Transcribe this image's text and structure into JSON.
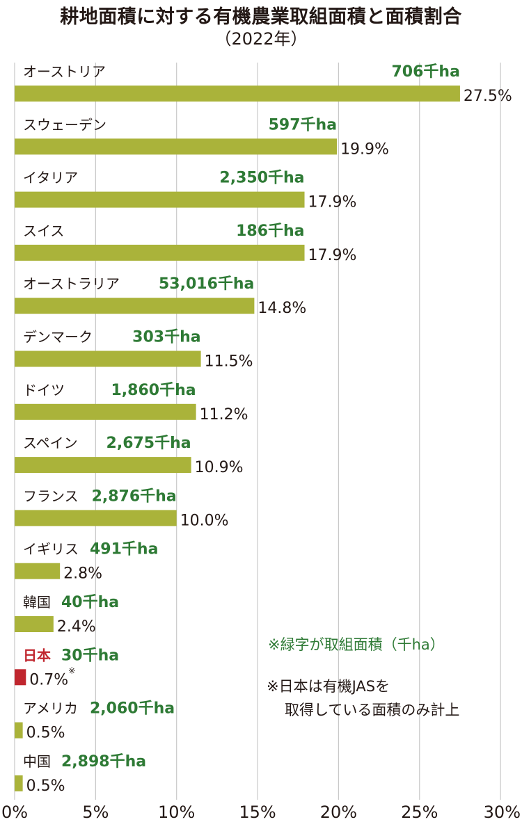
{
  "title": "耕地面積に対する有機農業取組面積と面積割合",
  "subtitle": "（2022年）",
  "notes": {
    "green": "※緑字が取組面積（千ha）",
    "black_line1": "※日本は有機JASを",
    "black_line2": "取得している面積のみ計上"
  },
  "colors": {
    "bar": "#aab33a",
    "highlight_bar": "#c0262e",
    "area_text": "#2e7a35",
    "highlight_text": "#c0262e",
    "grid": "#c8c8c8"
  },
  "chart_data": {
    "type": "bar",
    "orientation": "horizontal",
    "title": "耕地面積に対する有機農業取組面積と面積割合",
    "subtitle": "（2022年）",
    "xlim": [
      0,
      30
    ],
    "xticks": [
      "0%",
      "5%",
      "10%",
      "15%",
      "20%",
      "25%",
      "30%"
    ],
    "grid": true,
    "categories": [
      "オーストリア",
      "スウェーデン",
      "イタリア",
      "スイス",
      "オーストラリア",
      "デンマーク",
      "ドイツ",
      "スペイン",
      "フランス",
      "イギリス",
      "韓国",
      "日本",
      "アメリカ",
      "中国"
    ],
    "values": [
      27.5,
      19.9,
      17.9,
      17.9,
      14.8,
      11.5,
      11.2,
      10.9,
      10.0,
      2.8,
      2.4,
      0.7,
      0.5,
      0.5
    ],
    "value_labels": [
      "27.5%",
      "19.9%",
      "17.9%",
      "17.9%",
      "14.8%",
      "11.5%",
      "11.2%",
      "10.9%",
      "10.0%",
      "2.8%",
      "2.4%",
      "0.7%",
      "0.5%",
      "0.5%"
    ],
    "area_labels": [
      "706千ha",
      "597千ha",
      "2,350千ha",
      "186千ha",
      "53,016千ha",
      "303千ha",
      "1,860千ha",
      "2,675千ha",
      "2,876千ha",
      "491千ha",
      "40千ha",
      "30千ha",
      "2,060千ha",
      "2,898千ha"
    ],
    "highlight": "日本",
    "highlight_mark": "※"
  }
}
